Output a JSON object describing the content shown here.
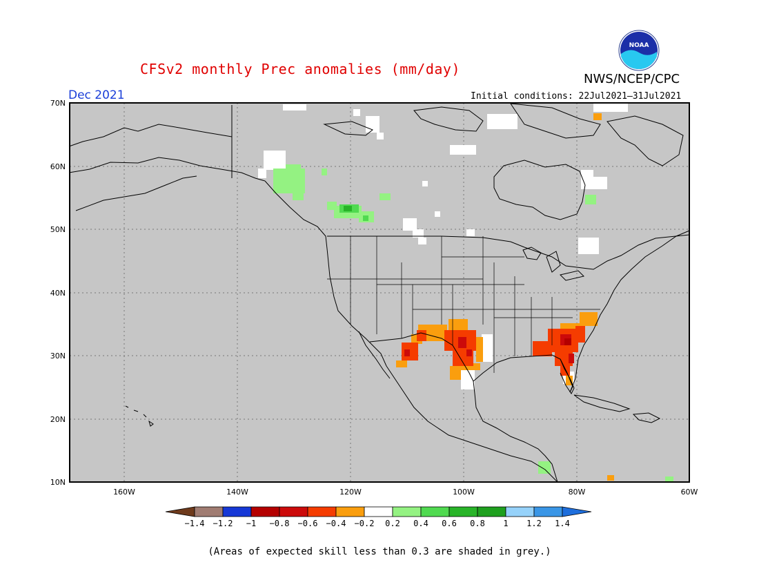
{
  "header": {
    "title": "CFSv2 monthly Prec anomalies (mm/day)",
    "agency": "NWS/NCEP/CPC",
    "month": "Dec 2021",
    "initial_conditions": "Initial conditions: 22Jul2021–31Jul2021",
    "logo_text": "NOAA"
  },
  "axes": {
    "lat_labels": [
      "70N",
      "60N",
      "50N",
      "40N",
      "30N",
      "20N",
      "10N"
    ],
    "lon_labels": [
      "160W",
      "140W",
      "120W",
      "100W",
      "80W",
      "60W"
    ]
  },
  "colorbar": {
    "labels": [
      "-1.4",
      "-1.2",
      "-1",
      "-0.8",
      "-0.6",
      "-0.4",
      "-0.2",
      "0.2",
      "0.4",
      "0.6",
      "0.8",
      "1",
      "1.2",
      "1.4"
    ],
    "colors": [
      "#6e3a1c",
      "#a07c72",
      "#1638d6",
      "#b40000",
      "#cc0a0a",
      "#f53c00",
      "#fa9e0e",
      "#ffffff",
      "#94f282",
      "#50da50",
      "#28b428",
      "#1ea01e",
      "#96d2fa",
      "#3a96e6",
      "#1e6edc"
    ]
  },
  "footnote": "(Areas of expected skill less than 0.3 are shaded in grey.)",
  "colors": {
    "background": "#c6c6c6",
    "title": "#e00000",
    "month": "#1a3ed8"
  }
}
